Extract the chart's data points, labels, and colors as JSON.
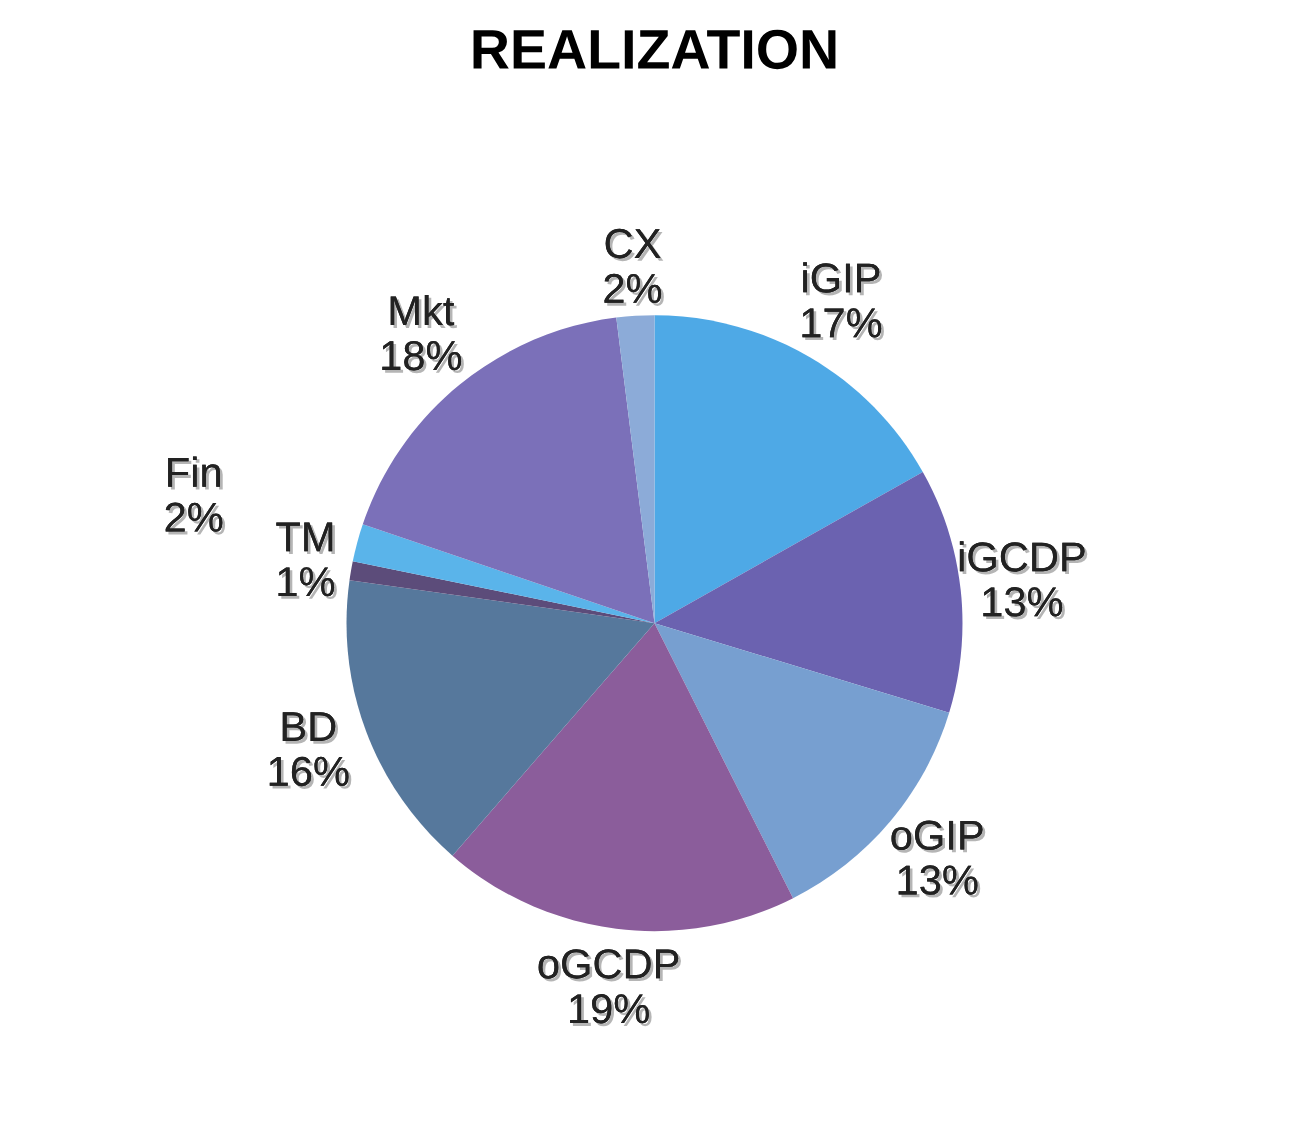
{
  "chart_data": {
    "type": "pie",
    "title": "REALIZATION",
    "categories": [
      "iGIP",
      "iGCDP",
      "oGIP",
      "oGCDP",
      "BD",
      "TM",
      "Fin",
      "Mkt",
      "CX"
    ],
    "values": [
      17,
      13,
      13,
      19,
      16,
      1,
      2,
      18,
      2
    ],
    "value_labels": [
      "17%",
      "13%",
      "13%",
      "19%",
      "16%",
      "1%",
      "2%",
      "18%",
      "2%"
    ],
    "colors": [
      "#4ea9e6",
      "#6b62b0",
      "#779fd0",
      "#8b5d9b",
      "#56789c",
      "#5c4c7a",
      "#5ab4ea",
      "#7b70b9",
      "#8cabd8"
    ]
  }
}
